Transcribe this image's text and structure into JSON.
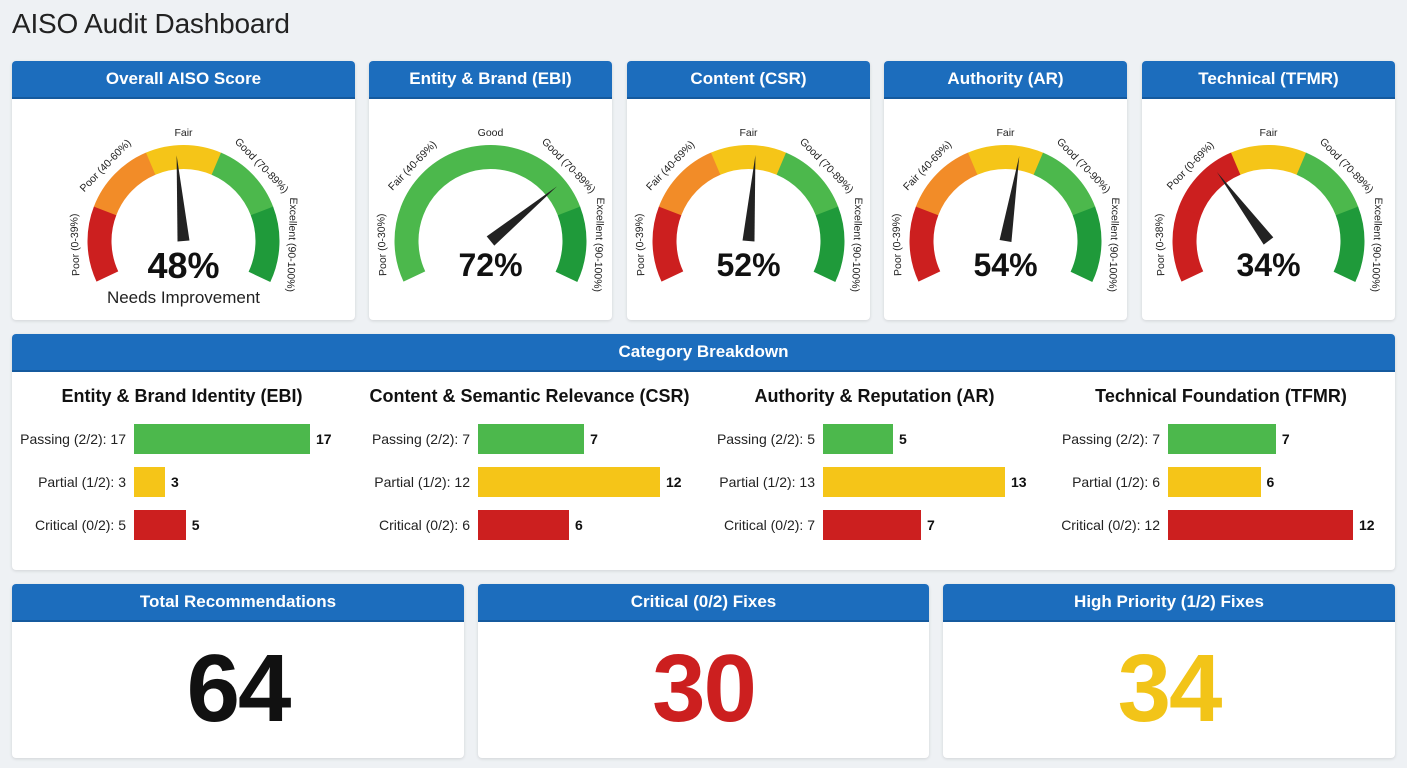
{
  "dashboard": {
    "title": "AISO Audit Dashboard"
  },
  "colors": {
    "header_blue": "#1c6dbd",
    "red": "#cc1f1f",
    "orange": "#f28c28",
    "yellow": "#f5c518",
    "green_light": "#4cb84c",
    "green_dark": "#1f9a3a",
    "total_number": "#111111",
    "critical_number": "#cc1f1f",
    "high_number": "#f2c418"
  },
  "gauges": [
    {
      "header": "Overall AISO Score",
      "value": 48,
      "value_text": "48%",
      "status": "Needs Improvement",
      "segments": [
        "red",
        "orange",
        "yellow",
        "green_light",
        "green_dark"
      ],
      "zone_labels": [
        "Poor (0-39%)",
        "Poor (40-60%)",
        "Fair",
        "Good (70-89%)",
        "Excellent (90-100%)"
      ]
    },
    {
      "header": "Entity & Brand (EBI)",
      "value": 72,
      "value_text": "72%",
      "status": "",
      "segments": [
        "green_light",
        "green_light",
        "green_light",
        "green_light",
        "green_dark"
      ],
      "zone_labels": [
        "Poor (0-30%)",
        "Fair (40-69%)",
        "Good",
        "Good (70-89%)",
        "Excellent (90-100%)"
      ]
    },
    {
      "header": "Content (CSR)",
      "value": 52,
      "value_text": "52%",
      "status": "",
      "segments": [
        "red",
        "orange",
        "yellow",
        "green_light",
        "green_dark"
      ],
      "zone_labels": [
        "Poor (0-39%)",
        "Fair (40-69%)",
        "Fair",
        "Good (70-89%)",
        "Excellent (90-100%)"
      ]
    },
    {
      "header": "Authority (AR)",
      "value": 54,
      "value_text": "54%",
      "status": "",
      "segments": [
        "red",
        "orange",
        "yellow",
        "green_light",
        "green_dark"
      ],
      "zone_labels": [
        "Poor (0-39%)",
        "Fair (40-69%)",
        "Fair",
        "Good (70-90%)",
        "Excellent (90-100%)"
      ]
    },
    {
      "header": "Technical (TFMR)",
      "value": 34,
      "value_text": "34%",
      "status": "",
      "segments": [
        "red",
        "red",
        "yellow",
        "green_light",
        "green_dark"
      ],
      "zone_labels": [
        "Poor (0-38%)",
        "Poor (0-69%)",
        "Fair",
        "Good (70-89%)",
        "Excellent (90-100%)"
      ]
    }
  ],
  "category_breakdown": {
    "header": "Category Breakdown",
    "categories": [
      {
        "title": "Entity & Brand Identity (EBI)",
        "rows": [
          {
            "label": "Passing (2/2): 17",
            "value": 17,
            "value_text": "17",
            "color": "green_light"
          },
          {
            "label": "Partial (1/2): 3",
            "value": 3,
            "value_text": "3",
            "color": "yellow"
          },
          {
            "label": "Critical (0/2): 5",
            "value": 5,
            "value_text": "5",
            "color": "red"
          }
        ]
      },
      {
        "title": "Content & Semantic Relevance (CSR)",
        "rows": [
          {
            "label": "Passing (2/2): 7",
            "value": 7,
            "value_text": "7",
            "color": "green_light"
          },
          {
            "label": "Partial (1/2): 12",
            "value": 12,
            "value_text": "12",
            "color": "yellow"
          },
          {
            "label": "Critical (0/2): 6",
            "value": 6,
            "value_text": "6",
            "color": "red"
          }
        ]
      },
      {
        "title": "Authority & Reputation (AR)",
        "rows": [
          {
            "label": "Passing (2/2): 5",
            "value": 5,
            "value_text": "5",
            "color": "green_light"
          },
          {
            "label": "Partial (1/2): 13",
            "value": 13,
            "value_text": "13",
            "color": "yellow"
          },
          {
            "label": "Critical (0/2): 7",
            "value": 7,
            "value_text": "7",
            "color": "red"
          }
        ]
      },
      {
        "title": "Technical Foundation (TFMR)",
        "rows": [
          {
            "label": "Passing (2/2): 7",
            "value": 7,
            "value_text": "7",
            "color": "green_light"
          },
          {
            "label": "Partial (1/2): 6",
            "value": 6,
            "value_text": "6",
            "color": "yellow"
          },
          {
            "label": "Critical (0/2): 12",
            "value": 12,
            "value_text": "12",
            "color": "red"
          }
        ]
      }
    ]
  },
  "summary": [
    {
      "header": "Total Recommendations",
      "value": "64",
      "color": "total_number"
    },
    {
      "header": "Critical (0/2) Fixes",
      "value": "30",
      "color": "critical_number"
    },
    {
      "header": "High Priority (1/2) Fixes",
      "value": "34",
      "color": "high_number"
    }
  ]
}
